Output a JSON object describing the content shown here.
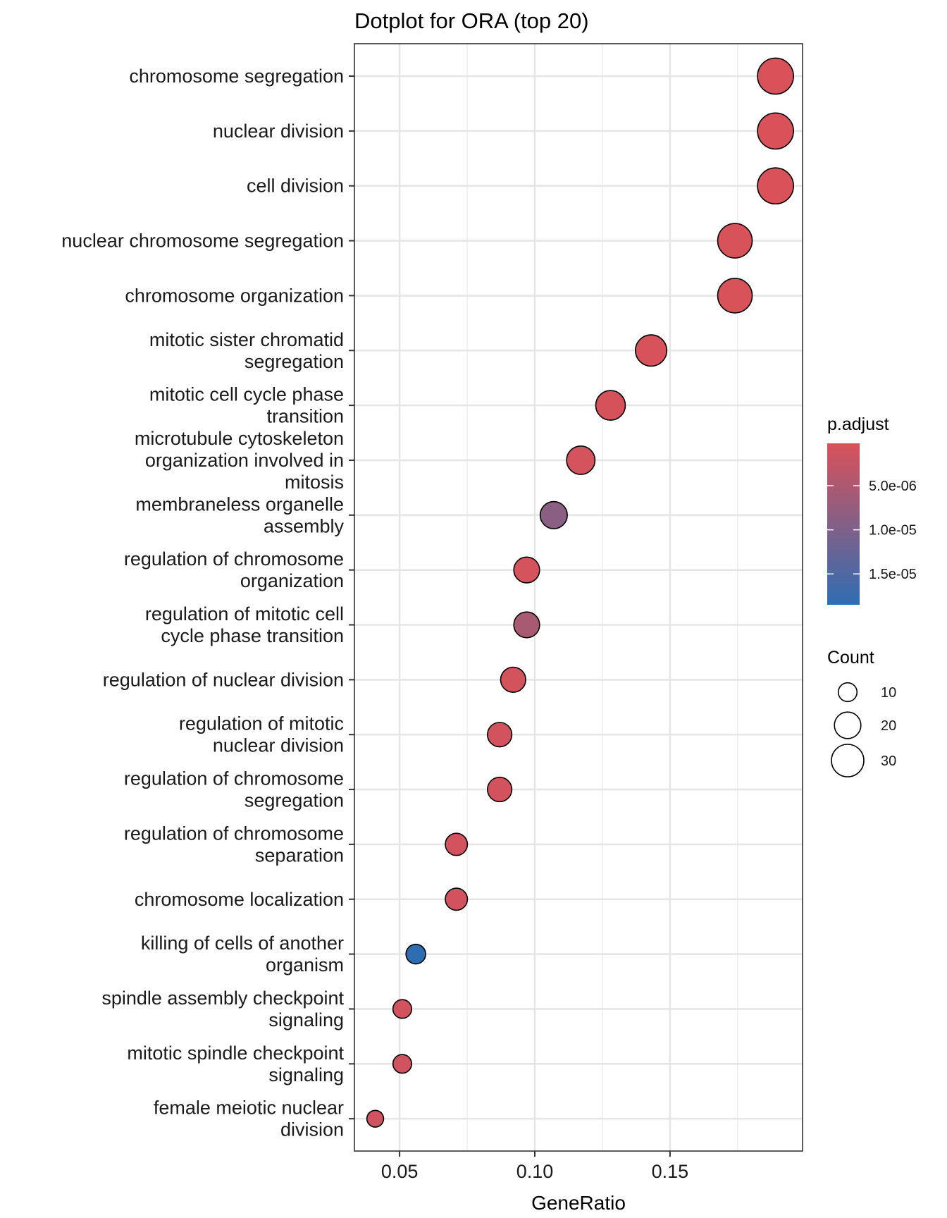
{
  "chart_data": {
    "type": "scatter",
    "subtype": "dotplot",
    "title": "Dotplot for ORA (top 20)",
    "xlabel": "GeneRatio",
    "ylabel": "",
    "xlim": [
      0.0333,
      0.199
    ],
    "x_ticks": [
      0.05,
      0.1,
      0.15
    ],
    "x_tick_labels": [
      "0.05",
      "0.10",
      "0.15"
    ],
    "grid": true,
    "categories": [
      "chromosome segregation",
      "nuclear division",
      "cell division",
      "nuclear chromosome segregation",
      "chromosome organization",
      "mitotic sister chromatid segregation",
      "mitotic cell cycle phase transition",
      "microtubule cytoskeleton organization involved in mitosis",
      "membraneless organelle assembly",
      "regulation of chromosome organization",
      "regulation of mitotic cell cycle phase transition",
      "regulation of nuclear division",
      "regulation of mitotic nuclear division",
      "regulation of chromosome segregation",
      "regulation of chromosome separation",
      "chromosome localization",
      "killing of cells of another organism",
      "spindle assembly checkpoint signaling",
      "mitotic spindle checkpoint signaling",
      "female meiotic nuclear division"
    ],
    "category_label_lines": [
      [
        "chromosome segregation"
      ],
      [
        "nuclear division"
      ],
      [
        "cell division"
      ],
      [
        "nuclear chromosome segregation"
      ],
      [
        "chromosome organization"
      ],
      [
        "mitotic sister chromatid",
        "segregation"
      ],
      [
        "mitotic cell cycle phase",
        "transition"
      ],
      [
        "microtubule cytoskeleton",
        "organization involved in",
        "mitosis"
      ],
      [
        "membraneless organelle",
        "assembly"
      ],
      [
        "regulation of chromosome",
        "organization"
      ],
      [
        "regulation of mitotic cell",
        "cycle phase transition"
      ],
      [
        "regulation of nuclear division"
      ],
      [
        "regulation of mitotic",
        "nuclear division"
      ],
      [
        "regulation of chromosome",
        "segregation"
      ],
      [
        "regulation of chromosome",
        "separation"
      ],
      [
        "chromosome localization"
      ],
      [
        "killing of cells of another",
        "organism"
      ],
      [
        "spindle assembly checkpoint",
        "signaling"
      ],
      [
        "mitotic spindle checkpoint",
        "signaling"
      ],
      [
        "female meiotic nuclear",
        "division"
      ]
    ],
    "gene_ratio": [
      0.189,
      0.189,
      0.189,
      0.174,
      0.174,
      0.143,
      0.128,
      0.117,
      0.107,
      0.097,
      0.097,
      0.092,
      0.087,
      0.087,
      0.071,
      0.071,
      0.056,
      0.051,
      0.051,
      0.041
    ],
    "count": [
      37,
      37,
      37,
      34,
      34,
      28,
      25,
      23,
      21,
      19,
      19,
      18,
      17,
      17,
      14,
      14,
      11,
      10,
      10,
      8
    ],
    "p_adjust": [
      2e-07,
      2e-07,
      2e-07,
      3e-07,
      3e-07,
      4e-07,
      5e-07,
      6e-07,
      8.6e-06,
      7e-07,
      5.4e-06,
      8e-07,
      9e-07,
      9e-07,
      1e-06,
      1e-06,
      1.85e-05,
      1.1e-06,
      1.2e-06,
      1.3e-06
    ],
    "legends": {
      "color": {
        "title": "p.adjust",
        "range": [
          2e-07,
          1.85e-05
        ],
        "ticks": [
          5e-06,
          1e-05,
          1.5e-05
        ],
        "tick_labels": [
          "5.0e-06",
          "1.0e-05",
          "1.5e-05"
        ],
        "low_color": "#D9525A",
        "high_color": "#2F6DB3"
      },
      "size": {
        "title": "Count",
        "breaks": [
          10,
          20,
          30
        ],
        "labels": [
          "10",
          "20",
          "30"
        ]
      },
      "placement": "right"
    }
  }
}
